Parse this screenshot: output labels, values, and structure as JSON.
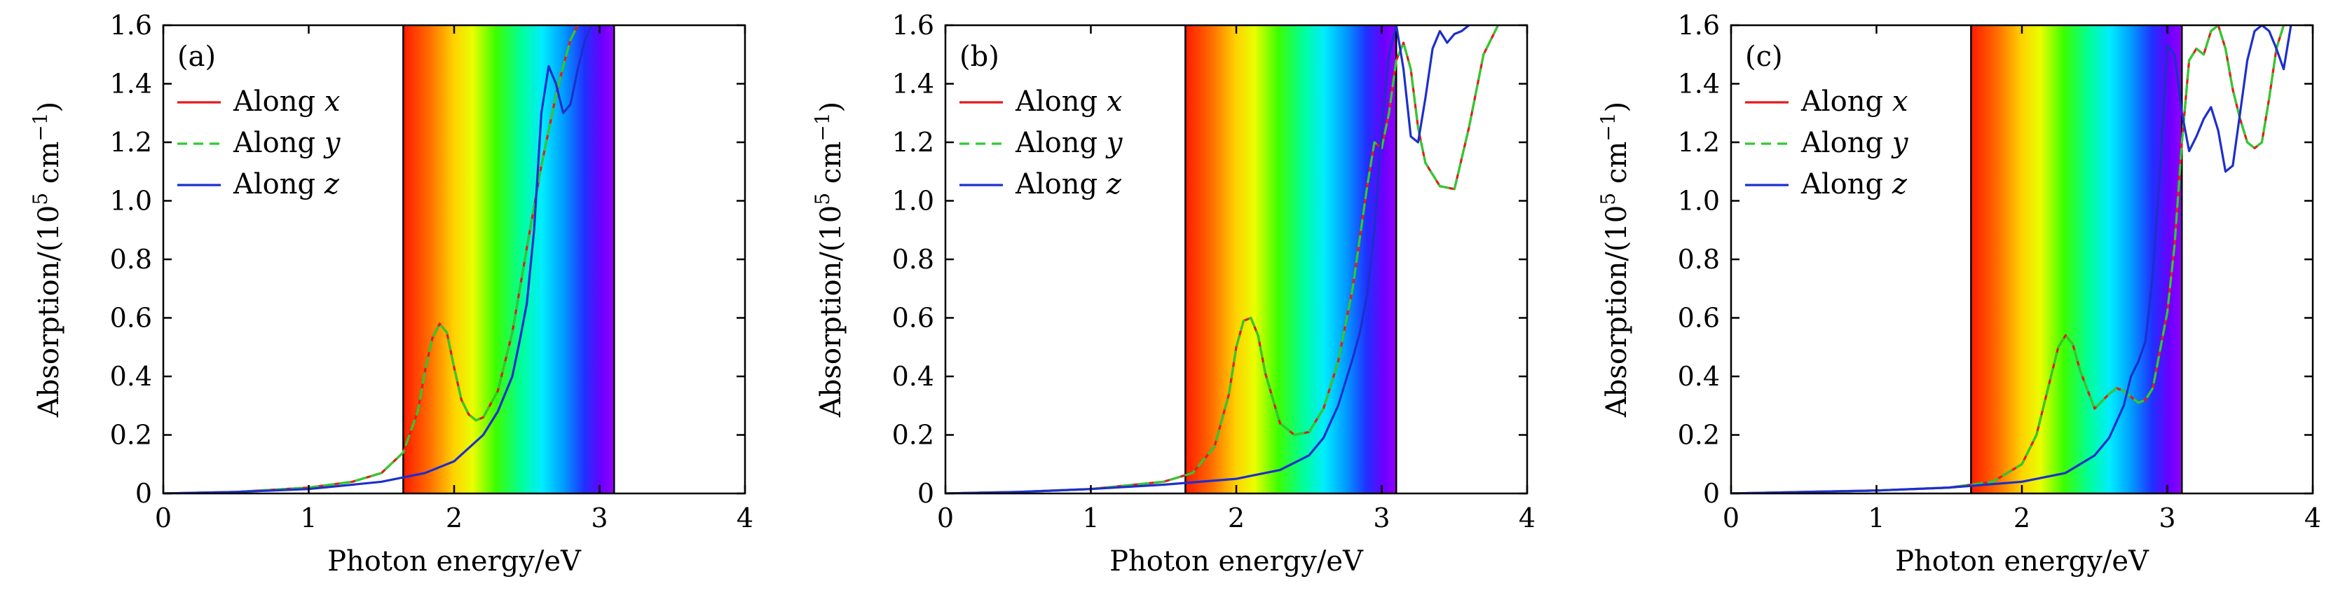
{
  "chart_data": [
    {
      "type": "line",
      "panel_label": "(a)",
      "xlabel": "Photon energy/eV",
      "ylabel_prefix": "Absorption/(10",
      "ylabel_exp1": "5",
      "ylabel_mid": " cm",
      "ylabel_exp2": "−1",
      "ylabel_suffix": ")",
      "xlim": [
        0,
        4
      ],
      "ylim": [
        0,
        1.6
      ],
      "x_ticks": [
        0,
        1,
        2,
        3,
        4
      ],
      "y_ticks": [
        0,
        0.2,
        0.4,
        0.6,
        0.8,
        1.0,
        1.2,
        1.4,
        1.6
      ],
      "y_tick_labels": [
        "0",
        "0.2",
        "0.4",
        "0.6",
        "0.8",
        "1.0",
        "1.2",
        "1.4",
        "1.6"
      ],
      "visible_band_eV": [
        1.65,
        3.1
      ],
      "legend_position": "top-left",
      "series": [
        {
          "name": "Along",
          "var": "x",
          "color": "#e41a1c",
          "dash": "solid",
          "x": [
            0,
            0.5,
            1.0,
            1.3,
            1.5,
            1.65,
            1.75,
            1.8,
            1.85,
            1.9,
            1.95,
            2.0,
            2.05,
            2.1,
            2.15,
            2.2,
            2.3,
            2.4,
            2.5,
            2.6,
            2.7,
            2.75,
            2.8,
            2.85
          ],
          "y": [
            0,
            0.005,
            0.02,
            0.04,
            0.07,
            0.14,
            0.28,
            0.42,
            0.53,
            0.58,
            0.55,
            0.43,
            0.32,
            0.27,
            0.25,
            0.26,
            0.35,
            0.55,
            0.84,
            1.12,
            1.36,
            1.46,
            1.55,
            1.6
          ]
        },
        {
          "name": "Along",
          "var": "y",
          "color": "#2fcb2f",
          "dash": "dashed",
          "x": [
            0,
            0.5,
            1.0,
            1.3,
            1.5,
            1.65,
            1.75,
            1.8,
            1.85,
            1.9,
            1.95,
            2.0,
            2.05,
            2.1,
            2.15,
            2.2,
            2.3,
            2.4,
            2.5,
            2.6,
            2.7,
            2.75,
            2.8,
            2.85
          ],
          "y": [
            0,
            0.005,
            0.02,
            0.04,
            0.07,
            0.14,
            0.28,
            0.42,
            0.53,
            0.58,
            0.55,
            0.43,
            0.32,
            0.27,
            0.25,
            0.26,
            0.35,
            0.55,
            0.84,
            1.12,
            1.36,
            1.46,
            1.55,
            1.6
          ]
        },
        {
          "name": "Along",
          "var": "z",
          "color": "#1d2fcc",
          "dash": "solid",
          "x": [
            0,
            0.5,
            1.0,
            1.5,
            1.8,
            2.0,
            2.2,
            2.3,
            2.4,
            2.45,
            2.5,
            2.55,
            2.6,
            2.65,
            2.7,
            2.75,
            2.8,
            2.85,
            2.9,
            2.95
          ],
          "y": [
            0,
            0.005,
            0.015,
            0.04,
            0.07,
            0.11,
            0.2,
            0.28,
            0.4,
            0.52,
            0.65,
            0.9,
            1.3,
            1.46,
            1.4,
            1.3,
            1.33,
            1.45,
            1.55,
            1.6
          ]
        }
      ]
    },
    {
      "type": "line",
      "panel_label": "(b)",
      "xlabel": "Photon energy/eV",
      "ylabel_prefix": "Absorption/(10",
      "ylabel_exp1": "5",
      "ylabel_mid": " cm",
      "ylabel_exp2": "−1",
      "ylabel_suffix": ")",
      "xlim": [
        0,
        4
      ],
      "ylim": [
        0,
        1.6
      ],
      "x_ticks": [
        0,
        1,
        2,
        3,
        4
      ],
      "y_ticks": [
        0,
        0.2,
        0.4,
        0.6,
        0.8,
        1.0,
        1.2,
        1.4,
        1.6
      ],
      "y_tick_labels": [
        "0",
        "0.2",
        "0.4",
        "0.6",
        "0.8",
        "1.0",
        "1.2",
        "1.4",
        "1.6"
      ],
      "visible_band_eV": [
        1.65,
        3.1
      ],
      "legend_position": "top-left",
      "series": [
        {
          "name": "Along",
          "var": "x",
          "color": "#e41a1c",
          "dash": "solid",
          "x": [
            0,
            0.5,
            1.0,
            1.5,
            1.7,
            1.85,
            1.95,
            2.0,
            2.05,
            2.1,
            2.15,
            2.2,
            2.3,
            2.4,
            2.5,
            2.6,
            2.7,
            2.8,
            2.9,
            2.95,
            3.0,
            3.05,
            3.1,
            3.15,
            3.2,
            3.25,
            3.3,
            3.4,
            3.5,
            3.6,
            3.7,
            3.8
          ],
          "y": [
            0,
            0.005,
            0.015,
            0.04,
            0.07,
            0.16,
            0.34,
            0.5,
            0.59,
            0.6,
            0.54,
            0.41,
            0.24,
            0.2,
            0.21,
            0.29,
            0.45,
            0.7,
            1.05,
            1.2,
            1.18,
            1.3,
            1.48,
            1.54,
            1.45,
            1.25,
            1.13,
            1.05,
            1.04,
            1.25,
            1.5,
            1.6
          ]
        },
        {
          "name": "Along",
          "var": "y",
          "color": "#2fcb2f",
          "dash": "dashed",
          "x": [
            0,
            0.5,
            1.0,
            1.5,
            1.7,
            1.85,
            1.95,
            2.0,
            2.05,
            2.1,
            2.15,
            2.2,
            2.3,
            2.4,
            2.5,
            2.6,
            2.7,
            2.8,
            2.9,
            2.95,
            3.0,
            3.05,
            3.1,
            3.15,
            3.2,
            3.25,
            3.3,
            3.4,
            3.5,
            3.6,
            3.7,
            3.8
          ],
          "y": [
            0,
            0.005,
            0.015,
            0.04,
            0.07,
            0.16,
            0.34,
            0.5,
            0.59,
            0.6,
            0.54,
            0.41,
            0.24,
            0.2,
            0.21,
            0.29,
            0.45,
            0.7,
            1.05,
            1.2,
            1.18,
            1.3,
            1.48,
            1.54,
            1.45,
            1.25,
            1.13,
            1.05,
            1.04,
            1.25,
            1.5,
            1.6
          ]
        },
        {
          "name": "Along",
          "var": "z",
          "color": "#1d2fcc",
          "dash": "solid",
          "x": [
            0,
            0.5,
            1.0,
            1.5,
            2.0,
            2.3,
            2.5,
            2.6,
            2.7,
            2.8,
            2.85,
            2.9,
            2.95,
            3.0,
            3.05,
            3.1,
            3.15,
            3.2,
            3.25,
            3.3,
            3.35,
            3.4,
            3.45,
            3.5,
            3.55,
            3.6
          ],
          "y": [
            0,
            0.005,
            0.015,
            0.03,
            0.05,
            0.08,
            0.13,
            0.19,
            0.3,
            0.46,
            0.55,
            0.68,
            0.9,
            1.25,
            1.5,
            1.6,
            1.45,
            1.22,
            1.2,
            1.35,
            1.52,
            1.58,
            1.54,
            1.57,
            1.58,
            1.6
          ]
        }
      ]
    },
    {
      "type": "line",
      "panel_label": "(c)",
      "xlabel": "Photon energy/eV",
      "ylabel_prefix": "Absorption/(10",
      "ylabel_exp1": "5",
      "ylabel_mid": " cm",
      "ylabel_exp2": "−1",
      "ylabel_suffix": ")",
      "xlim": [
        0,
        4
      ],
      "ylim": [
        0,
        1.6
      ],
      "x_ticks": [
        0,
        1,
        2,
        3,
        4
      ],
      "y_ticks": [
        0,
        0.2,
        0.4,
        0.6,
        0.8,
        1.0,
        1.2,
        1.4,
        1.6
      ],
      "y_tick_labels": [
        "0",
        "0.2",
        "0.4",
        "0.6",
        "0.8",
        "1.0",
        "1.2",
        "1.4",
        "1.6"
      ],
      "visible_band_eV": [
        1.65,
        3.1
      ],
      "legend_position": "top-left",
      "series": [
        {
          "name": "Along",
          "var": "x",
          "color": "#e41a1c",
          "dash": "solid",
          "x": [
            0,
            0.5,
            1.0,
            1.5,
            1.8,
            2.0,
            2.1,
            2.2,
            2.25,
            2.3,
            2.35,
            2.4,
            2.5,
            2.6,
            2.65,
            2.7,
            2.75,
            2.8,
            2.85,
            2.9,
            3.0,
            3.05,
            3.1,
            3.15,
            3.2,
            3.25,
            3.3,
            3.35,
            3.4,
            3.45,
            3.5,
            3.55,
            3.6,
            3.65,
            3.7,
            3.75,
            3.8
          ],
          "y": [
            0,
            0.005,
            0.01,
            0.02,
            0.04,
            0.1,
            0.2,
            0.4,
            0.5,
            0.54,
            0.51,
            0.42,
            0.29,
            0.34,
            0.36,
            0.35,
            0.33,
            0.31,
            0.32,
            0.36,
            0.62,
            0.85,
            1.2,
            1.48,
            1.52,
            1.5,
            1.58,
            1.6,
            1.52,
            1.38,
            1.28,
            1.2,
            1.18,
            1.2,
            1.35,
            1.52,
            1.6
          ]
        },
        {
          "name": "Along",
          "var": "y",
          "color": "#2fcb2f",
          "dash": "dashed",
          "x": [
            0,
            0.5,
            1.0,
            1.5,
            1.8,
            2.0,
            2.1,
            2.2,
            2.25,
            2.3,
            2.35,
            2.4,
            2.5,
            2.6,
            2.65,
            2.7,
            2.75,
            2.8,
            2.85,
            2.9,
            3.0,
            3.05,
            3.1,
            3.15,
            3.2,
            3.25,
            3.3,
            3.35,
            3.4,
            3.45,
            3.5,
            3.55,
            3.6,
            3.65,
            3.7,
            3.75,
            3.8
          ],
          "y": [
            0,
            0.005,
            0.01,
            0.02,
            0.04,
            0.1,
            0.2,
            0.4,
            0.5,
            0.54,
            0.51,
            0.42,
            0.29,
            0.34,
            0.36,
            0.35,
            0.33,
            0.31,
            0.32,
            0.36,
            0.62,
            0.85,
            1.2,
            1.48,
            1.52,
            1.5,
            1.58,
            1.6,
            1.52,
            1.38,
            1.28,
            1.2,
            1.18,
            1.2,
            1.35,
            1.52,
            1.6
          ]
        },
        {
          "name": "Along",
          "var": "z",
          "color": "#1d2fcc",
          "dash": "solid",
          "x": [
            0,
            0.5,
            1.0,
            1.5,
            2.0,
            2.3,
            2.5,
            2.6,
            2.7,
            2.75,
            2.8,
            2.85,
            2.9,
            2.95,
            3.0,
            3.05,
            3.1,
            3.15,
            3.2,
            3.25,
            3.3,
            3.35,
            3.4,
            3.45,
            3.5,
            3.55,
            3.6,
            3.65,
            3.7,
            3.75,
            3.8,
            3.85
          ],
          "y": [
            0,
            0.005,
            0.01,
            0.02,
            0.04,
            0.07,
            0.13,
            0.19,
            0.3,
            0.4,
            0.45,
            0.52,
            0.75,
            1.1,
            1.53,
            1.5,
            1.3,
            1.17,
            1.22,
            1.28,
            1.32,
            1.24,
            1.1,
            1.12,
            1.3,
            1.48,
            1.58,
            1.6,
            1.58,
            1.52,
            1.45,
            1.6
          ]
        }
      ]
    }
  ]
}
